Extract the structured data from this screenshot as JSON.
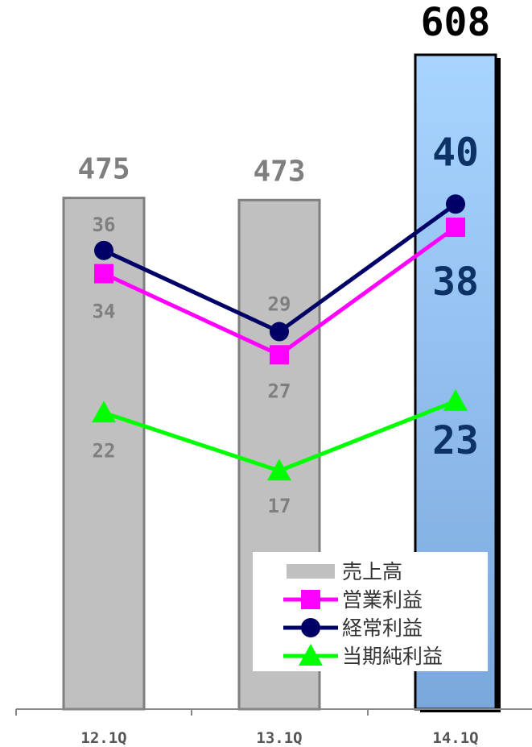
{
  "chart_data": {
    "type": "bar-line",
    "categories": [
      "12.1Q",
      "13.1Q",
      "14.1Q"
    ],
    "series": [
      {
        "name": "売上高",
        "type": "bar",
        "values": [
          475,
          473,
          608
        ],
        "labels": [
          "475",
          "473",
          "608"
        ]
      },
      {
        "name": "営業利益",
        "type": "line",
        "marker": "square",
        "color": "#ff00ff",
        "values": [
          34,
          27,
          38
        ],
        "labels": [
          "34",
          "27",
          "38"
        ]
      },
      {
        "name": "経常利益",
        "type": "line",
        "marker": "circle",
        "color": "#000066",
        "values": [
          36,
          29,
          40
        ],
        "labels": [
          "36",
          "29",
          "40"
        ]
      },
      {
        "name": "当期純利益",
        "type": "line",
        "marker": "triangle",
        "color": "#00ff00",
        "values": [
          22,
          17,
          23
        ],
        "labels": [
          "22",
          "17",
          "23"
        ]
      }
    ],
    "bar_colors": [
      "#c0c0c0",
      "#c0c0c0",
      "#8ab8e8"
    ],
    "legend_position": "bottom-right",
    "grid": false
  }
}
